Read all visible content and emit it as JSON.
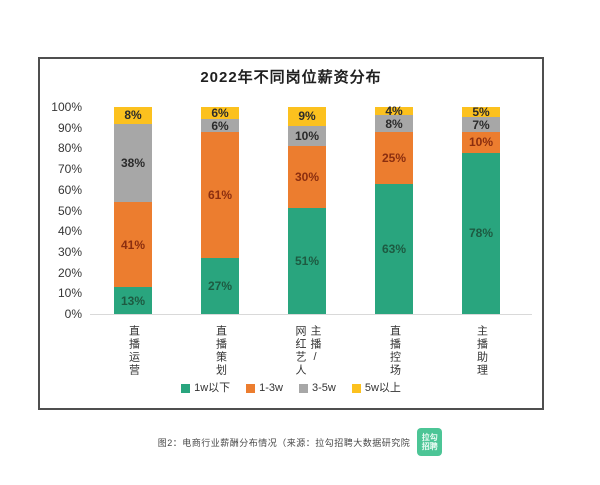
{
  "chart_data": {
    "type": "bar",
    "subtype": "stacked-100-percent",
    "title": "2022年不同岗位薪资分布",
    "categories": [
      "直播运营",
      "直播策划",
      "主播/网红艺人",
      "直播控场",
      "主播助理"
    ],
    "categories_display": [
      [
        "直播运营"
      ],
      [
        "直播策划"
      ],
      [
        "网红艺人",
        "主播/"
      ],
      [
        "直播控场"
      ],
      [
        "主播助理"
      ]
    ],
    "series": [
      {
        "name": "1w以下",
        "color": "#29a57e",
        "label_color": "#1d5a41",
        "values": [
          13,
          27,
          51,
          63,
          78
        ]
      },
      {
        "name": "1-3w",
        "color": "#ec7d2f",
        "label_color": "#8b2e0f",
        "values": [
          41,
          61,
          30,
          25,
          10
        ]
      },
      {
        "name": "3-5w",
        "color": "#a7a7a7",
        "label_color": "#2b2b2b",
        "values": [
          38,
          6,
          10,
          8,
          7
        ]
      },
      {
        "name": "5w以上",
        "color": "#fcc11e",
        "label_color": "#2b2b2b",
        "values": [
          8,
          6,
          9,
          4,
          5
        ]
      }
    ],
    "y_ticks": [
      "0%",
      "10%",
      "20%",
      "30%",
      "40%",
      "50%",
      "60%",
      "70%",
      "80%",
      "90%",
      "100%"
    ],
    "ylim": [
      0,
      100
    ],
    "value_suffix": "%",
    "grid": false,
    "legend_position": "bottom"
  },
  "caption": {
    "text": "图2：电商行业薪酬分布情况（来源：拉勾招聘大数据研究院",
    "logo_lines": [
      "拉勾",
      "招聘"
    ],
    "logo_bg_color": "#4cc596",
    "logo_text_color": "#e9fbf3"
  }
}
